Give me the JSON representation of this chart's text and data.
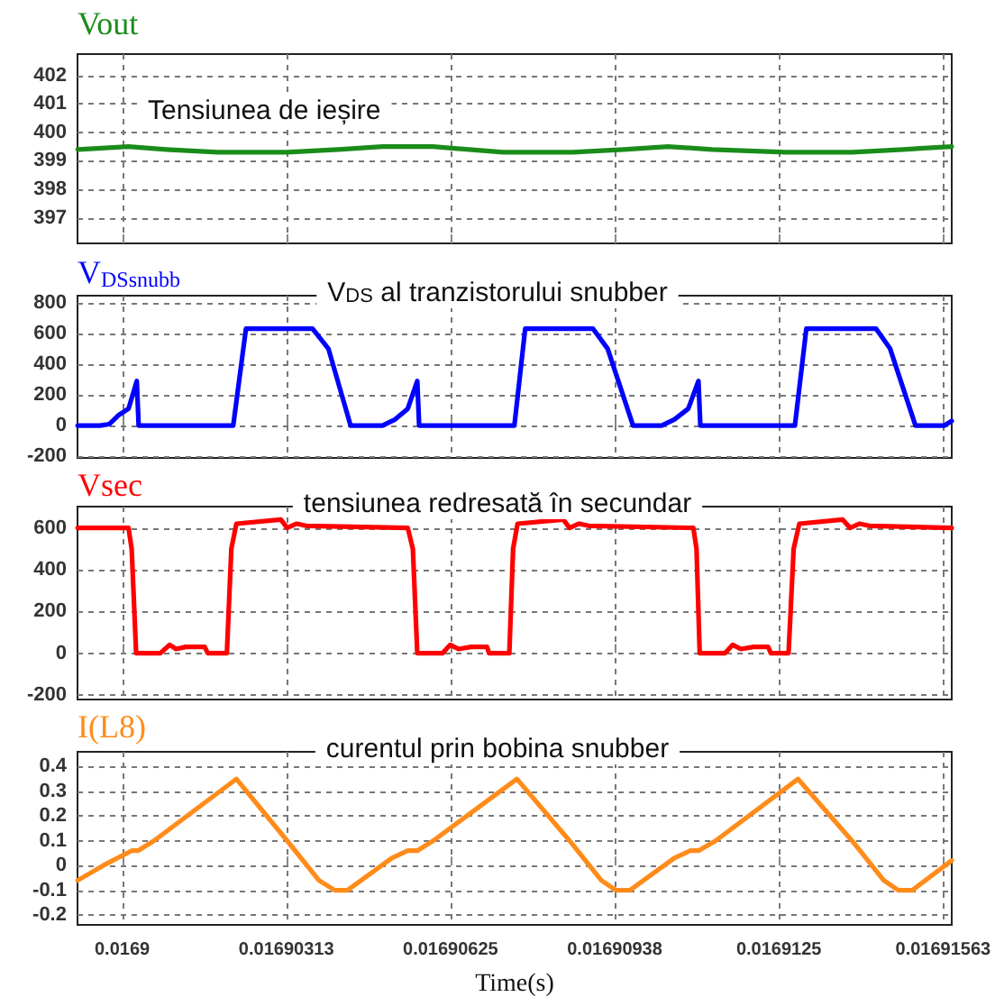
{
  "chart_data": [
    {
      "type": "line",
      "annotations": [
        "Tensiunea de ieșire"
      ],
      "xlim": [
        0.01689915,
        0.01691579
      ],
      "xticks": [
        {
          "value": 0.0169,
          "label": null
        },
        {
          "value": 0.016903125,
          "label": null
        },
        {
          "value": 0.01690625,
          "label": null
        },
        {
          "value": 0.016909375,
          "label": null
        },
        {
          "value": 0.0169125,
          "label": null
        },
        {
          "value": 0.016915625,
          "label": null
        }
      ],
      "ylim": [
        396.1,
        402.75
      ],
      "yticks": [
        397,
        398,
        399,
        400,
        401,
        402
      ],
      "grid": true,
      "legend": "top left",
      "marker": "none",
      "tick_labels": "y",
      "series": [
        {
          "name": "Vout",
          "color": "#1a8c1a",
          "x": [
            0.016899154,
            0.016900121,
            0.016900846,
            0.016901812,
            0.016902295,
            0.016903141,
            0.016904107,
            0.016904953,
            0.016905919,
            0.016907248,
            0.016907731,
            0.016908577,
            0.016909543,
            0.016910389,
            0.016911234,
            0.016912624,
            0.016913046,
            0.016913892,
            0.016914858,
            0.016915789
          ],
          "values": [
            399.4,
            399.5,
            399.4,
            399.3,
            399.3,
            399.3,
            399.4,
            399.5,
            399.5,
            399.3,
            399.3,
            399.3,
            399.4,
            399.5,
            399.4,
            399.3,
            399.3,
            399.3,
            399.4,
            399.5
          ]
        }
      ]
    },
    {
      "type": "line",
      "annotations": [
        "V$_{DS}$ al tranzistorului snubber"
      ],
      "xlim": [
        0.01689915,
        0.01691579
      ],
      "xticks": [
        {
          "value": 0.0169,
          "label": null
        },
        {
          "value": 0.016903125,
          "label": null
        },
        {
          "value": 0.01690625,
          "label": null
        },
        {
          "value": 0.016909375,
          "label": null
        },
        {
          "value": 0.0169125,
          "label": null
        },
        {
          "value": 0.016915625,
          "label": null
        }
      ],
      "ylim": [
        -210,
        845
      ],
      "yticks": [
        -200,
        0,
        200,
        400,
        600,
        800
      ],
      "grid": true,
      "legend": "top left",
      "marker": "none",
      "tick_labels": "y",
      "series": [
        {
          "name": "V$_{DSsnubb}$",
          "color": "#0000ff",
          "x": [
            0.016899154,
            0.016899577,
            0.016899758,
            0.01689994,
            0.016900121,
            0.016900278,
            0.016900314,
            0.016902114,
            0.016902356,
            0.016903624,
            0.016903926,
            0.016904349,
            0.016904953,
            0.016905194,
            0.016905436,
            0.016905617,
            0.016905653,
            0.016907465,
            0.016907671,
            0.016908963,
            0.016909241,
            0.016909724,
            0.016910268,
            0.01691051,
            0.016910775,
            0.016910969,
            0.016911005,
            0.016912805,
            0.016913022,
            0.016914351,
            0.016914617,
            0.0169151,
            0.016915644,
            0.016915789
          ],
          "values": [
            0,
            0,
            10,
            70,
            110,
            290,
            0,
            0,
            630,
            630,
            500,
            0,
            0,
            40,
            110,
            290,
            0,
            0,
            630,
            630,
            500,
            0,
            0,
            40,
            110,
            290,
            0,
            0,
            630,
            630,
            500,
            0,
            0,
            30
          ]
        }
      ]
    },
    {
      "type": "line",
      "annotations": [
        "tensiunea redresată în secundar"
      ],
      "xlim": [
        0.01689915,
        0.01691579
      ],
      "xticks": [
        {
          "value": 0.0169,
          "label": null
        },
        {
          "value": 0.016903125,
          "label": null
        },
        {
          "value": 0.01690625,
          "label": null
        },
        {
          "value": 0.016909375,
          "label": null
        },
        {
          "value": 0.0169125,
          "label": null
        },
        {
          "value": 0.016915625,
          "label": null
        }
      ],
      "ylim": [
        -222,
        702
      ],
      "yticks": [
        -200,
        0,
        200,
        400,
        600
      ],
      "grid": true,
      "legend": "top left",
      "marker": "none",
      "tick_labels": "y",
      "series": [
        {
          "name": "Vsec",
          "color": "#ff0000",
          "x": [
            0.016899154,
            0.016900121,
            0.016900181,
            0.016900266,
            0.016900725,
            0.016900906,
            0.016901027,
            0.016901208,
            0.01690157,
            0.016901631,
            0.016901993,
            0.016902078,
            0.016902174,
            0.01690302,
            0.016903141,
            0.016903322,
            0.016903503,
            0.016905436,
            0.016905533,
            0.016905617,
            0.0169061,
            0.016906245,
            0.016906402,
            0.016906644,
            0.016906946,
            0.016906982,
            0.016907369,
            0.016907441,
            0.016907526,
            0.016908396,
            0.016908516,
            0.016908698,
            0.016908879,
            0.016910872,
            0.016910932,
            0.016910993,
            0.016911476,
            0.016911621,
            0.016911778,
            0.01691202,
            0.016912297,
            0.016912346,
            0.016912684,
            0.016912781,
            0.016912889,
            0.016913711,
            0.016913856,
            0.016914037,
            0.016914218,
            0.016915789
          ],
          "values": [
            600,
            600,
            500,
            0,
            0,
            40,
            20,
            30,
            30,
            0,
            0,
            500,
            620,
            640,
            600,
            620,
            610,
            600,
            500,
            0,
            0,
            40,
            20,
            30,
            30,
            0,
            0,
            500,
            620,
            640,
            600,
            620,
            610,
            600,
            500,
            0,
            0,
            40,
            20,
            30,
            30,
            0,
            0,
            500,
            620,
            640,
            600,
            620,
            610,
            600
          ]
        }
      ]
    },
    {
      "type": "line",
      "annotations": [
        "curentul prin bobina snubber"
      ],
      "xlabel": "Time(s)",
      "xlim": [
        0.01689915,
        0.01691579
      ],
      "xticks": [
        {
          "value": 0.0169,
          "label": "0.0169"
        },
        {
          "value": 0.016903125,
          "label": "0.01690313"
        },
        {
          "value": 0.01690625,
          "label": "0.01690625"
        },
        {
          "value": 0.016909375,
          "label": "0.01690938"
        },
        {
          "value": 0.0169125,
          "label": "0.0169125"
        },
        {
          "value": 0.016915625,
          "label": "0.01691563"
        }
      ],
      "ylim": [
        -0.24,
        0.46
      ],
      "yticks": [
        -0.2,
        -0.1,
        0,
        0.1,
        0.2,
        0.3,
        0.4
      ],
      "grid": true,
      "legend": "top left",
      "marker": "none",
      "series": [
        {
          "name": "I(L8)",
          "color": "#ff8c1a",
          "x": [
            0.016899154,
            0.016899638,
            0.016900181,
            0.016900302,
            0.016900604,
            0.016902174,
            0.016903141,
            0.016903745,
            0.016904047,
            0.016904288,
            0.016905134,
            0.016905436,
            0.016905617,
            0.016905919,
            0.016907514,
            0.016908516,
            0.01690912,
            0.016909398,
            0.016909664,
            0.01691051,
            0.016910812,
            0.016910969,
            0.016911295,
            0.016912865,
            0.016913892,
            0.016914496,
            0.016914774,
            0.01691504,
            0.016915789
          ],
          "values": [
            -0.06,
            0,
            0.06,
            0.06,
            0.1,
            0.35,
            0.1,
            -0.06,
            -0.1,
            -0.1,
            0.03,
            0.06,
            0.06,
            0.1,
            0.35,
            0.1,
            -0.06,
            -0.1,
            -0.1,
            0.03,
            0.06,
            0.06,
            0.1,
            0.35,
            0.1,
            -0.06,
            -0.1,
            -0.1,
            0.02
          ]
        }
      ]
    }
  ]
}
